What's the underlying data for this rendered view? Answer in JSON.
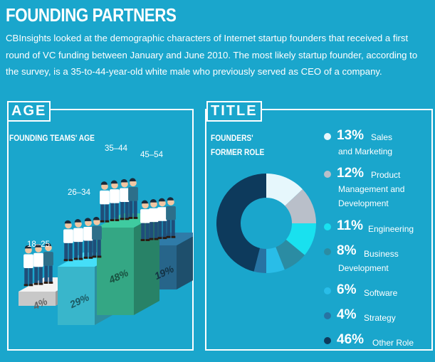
{
  "header": {
    "title": "FOUNDING PARTNERS",
    "intro": "CBInsights looked at the demographic characters of Internet startup founders that received a first round of VC funding between January and June 2010. The most likely startup founder, according to the survey, is a 35-to-44-year-old white male who previously served as CEO of a company."
  },
  "age_panel": {
    "tag": "AGE",
    "subhead": "FOUNDING TEAMS' AGE"
  },
  "title_panel": {
    "tag": "TITLE",
    "subhead_line1": "FOUNDERS'",
    "subhead_line2": "FORMER ROLE"
  },
  "colors": {
    "background": "#1aa6cc",
    "step_18_25": "#d9d9d9",
    "step_26_34": "#3ec6dd",
    "step_35_44": "#38b58f",
    "step_45_54": "#2a6e96",
    "figure_shirt": "#ffffff",
    "figure_pants": "#1f4e79",
    "figure_skin": "#f2c7a3"
  },
  "chart_data": [
    {
      "type": "bar",
      "title": "FOUNDING TEAMS' AGE",
      "categories": [
        "18–25",
        "26–34",
        "35–44",
        "45–54"
      ],
      "values": [
        4,
        29,
        48,
        19
      ],
      "value_labels": [
        "4%",
        "29%",
        "48%",
        "19%"
      ],
      "unit": "%"
    },
    {
      "type": "pie",
      "title": "FOUNDERS' FORMER ROLE",
      "slices": [
        {
          "pct_label": "13%",
          "value": 13,
          "label_line1": "Sales",
          "label_line2": "and Marketing",
          "color": "#e6f7fc"
        },
        {
          "pct_label": "12%",
          "value": 12,
          "label_line1": "Product",
          "label_line2": "Management and",
          "label_line3": "Development",
          "color": "#b9bfc9"
        },
        {
          "pct_label": "11%",
          "value": 11,
          "label_line1": "Engineering",
          "color": "#19e1ef"
        },
        {
          "pct_label": "8%",
          "value": 8,
          "label_line1": "Business",
          "label_line2": "Development",
          "color": "#2b8ca3"
        },
        {
          "pct_label": "6%",
          "value": 6,
          "label_line1": "Software",
          "color": "#29bde8"
        },
        {
          "pct_label": "4%",
          "value": 4,
          "label_line1": "Strategy",
          "color": "#2773a3"
        },
        {
          "pct_label": "46%",
          "value": 46,
          "label_line1": "Other Role",
          "color": "#0d3a5c"
        }
      ]
    }
  ]
}
